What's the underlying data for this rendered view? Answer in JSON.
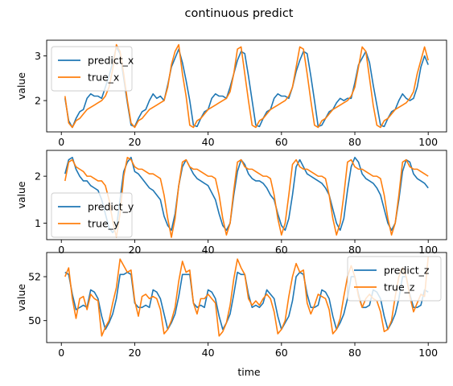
{
  "figure": {
    "title": "continuous predict"
  },
  "colors": {
    "predict": "#1f77b4",
    "true": "#ff7f0e"
  },
  "chart_data": [
    {
      "type": "line",
      "title": "",
      "xlabel": "",
      "ylabel": "value",
      "xlim": [
        -4,
        105
      ],
      "ylim": [
        1.3,
        3.35
      ],
      "xticks": [
        0,
        20,
        40,
        60,
        80,
        100
      ],
      "xtick_labels": [
        "0",
        "20",
        "40",
        "60",
        "80",
        "100"
      ],
      "yticks": [
        2,
        3
      ],
      "ytick_labels": [
        "2",
        "3"
      ],
      "legend": "top-left",
      "x": [
        1,
        2,
        3,
        4,
        5,
        6,
        7,
        8,
        9,
        10,
        11,
        12,
        13,
        14,
        15,
        16,
        17,
        18,
        19,
        20,
        21,
        22,
        23,
        24,
        25,
        26,
        27,
        28,
        29,
        30,
        31,
        32,
        33,
        34,
        35,
        36,
        37,
        38,
        39,
        40,
        41,
        42,
        43,
        44,
        45,
        46,
        47,
        48,
        49,
        50,
        51,
        52,
        53,
        54,
        55,
        56,
        57,
        58,
        59,
        60,
        61,
        62,
        63,
        64,
        65,
        66,
        67,
        68,
        69,
        70,
        71,
        72,
        73,
        74,
        75,
        76,
        77,
        78,
        79,
        80,
        81,
        82,
        83,
        84,
        85,
        86,
        87,
        88,
        89,
        90,
        91,
        92,
        93,
        94,
        95,
        96,
        97,
        98,
        99,
        100
      ],
      "series": [
        {
          "name": "predict_x",
          "color": "#1f77b4",
          "values": [
            2.05,
            1.55,
            1.4,
            1.6,
            1.75,
            1.8,
            2.05,
            2.15,
            2.1,
            2.1,
            2.05,
            2.3,
            2.55,
            2.85,
            3.2,
            3.05,
            2.5,
            1.95,
            1.45,
            1.42,
            1.6,
            1.75,
            1.8,
            2.0,
            2.15,
            2.05,
            2.1,
            2.0,
            2.35,
            2.75,
            2.95,
            3.15,
            2.85,
            2.45,
            2.0,
            1.45,
            1.42,
            1.6,
            1.75,
            1.8,
            2.05,
            2.15,
            2.1,
            2.1,
            2.05,
            2.3,
            2.6,
            2.9,
            3.1,
            3.05,
            2.55,
            2.0,
            1.45,
            1.42,
            1.6,
            1.75,
            1.8,
            2.05,
            2.15,
            2.1,
            2.1,
            2.05,
            2.3,
            2.65,
            2.9,
            3.1,
            3.05,
            2.55,
            2.0,
            1.42,
            1.45,
            1.6,
            1.75,
            1.8,
            1.95,
            2.05,
            2.0,
            2.05,
            2.05,
            2.4,
            2.8,
            2.95,
            3.1,
            2.85,
            2.35,
            1.9,
            1.45,
            1.42,
            1.6,
            1.75,
            1.8,
            2.0,
            2.15,
            2.05,
            2.0,
            2.05,
            2.3,
            2.75,
            3.0,
            2.8
          ]
        },
        {
          "name": "true_x",
          "color": "#ff7f0e",
          "values": [
            2.1,
            1.5,
            1.4,
            1.55,
            1.6,
            1.7,
            1.8,
            1.85,
            1.9,
            1.95,
            2.0,
            2.1,
            2.3,
            2.7,
            3.25,
            3.1,
            2.6,
            2.0,
            1.5,
            1.4,
            1.55,
            1.6,
            1.7,
            1.8,
            1.85,
            1.9,
            1.95,
            2.0,
            2.3,
            2.8,
            3.1,
            3.25,
            2.6,
            2.1,
            1.45,
            1.4,
            1.55,
            1.6,
            1.7,
            1.8,
            1.85,
            1.9,
            1.95,
            2.0,
            2.05,
            2.2,
            2.6,
            3.15,
            3.2,
            2.6,
            2.0,
            1.45,
            1.4,
            1.55,
            1.6,
            1.7,
            1.8,
            1.85,
            1.9,
            1.95,
            2.0,
            2.1,
            2.3,
            2.75,
            3.2,
            3.15,
            2.6,
            2.0,
            1.45,
            1.4,
            1.55,
            1.6,
            1.7,
            1.8,
            1.85,
            1.9,
            1.95,
            2.0,
            2.1,
            2.3,
            2.75,
            3.2,
            3.1,
            2.5,
            1.9,
            1.45,
            1.4,
            1.55,
            1.6,
            1.7,
            1.8,
            1.85,
            1.9,
            1.95,
            2.05,
            2.2,
            2.6,
            2.9,
            3.2,
            2.9
          ]
        }
      ]
    },
    {
      "type": "line",
      "title": "",
      "xlabel": "",
      "ylabel": "value",
      "xlim": [
        -4,
        105
      ],
      "ylim": [
        0.65,
        2.55
      ],
      "xticks": [
        0,
        20,
        40,
        60,
        80,
        100
      ],
      "xtick_labels": [
        "0",
        "20",
        "40",
        "60",
        "80",
        "100"
      ],
      "yticks": [
        1,
        2
      ],
      "ytick_labels": [
        "1",
        "2"
      ],
      "legend": "bottom-left",
      "x": [
        1,
        2,
        3,
        4,
        5,
        6,
        7,
        8,
        9,
        10,
        11,
        12,
        13,
        14,
        15,
        16,
        17,
        18,
        19,
        20,
        21,
        22,
        23,
        24,
        25,
        26,
        27,
        28,
        29,
        30,
        31,
        32,
        33,
        34,
        35,
        36,
        37,
        38,
        39,
        40,
        41,
        42,
        43,
        44,
        45,
        46,
        47,
        48,
        49,
        50,
        51,
        52,
        53,
        54,
        55,
        56,
        57,
        58,
        59,
        60,
        61,
        62,
        63,
        64,
        65,
        66,
        67,
        68,
        69,
        70,
        71,
        72,
        73,
        74,
        75,
        76,
        77,
        78,
        79,
        80,
        81,
        82,
        83,
        84,
        85,
        86,
        87,
        88,
        89,
        90,
        91,
        92,
        93,
        94,
        95,
        96,
        97,
        98,
        99,
        100
      ],
      "series": [
        {
          "name": "predict_y",
          "color": "#1f77b4",
          "values": [
            2.05,
            2.35,
            2.4,
            2.15,
            2.0,
            1.9,
            1.9,
            1.8,
            1.75,
            1.7,
            1.5,
            1.2,
            0.9,
            0.8,
            0.9,
            1.5,
            2.1,
            2.3,
            2.4,
            2.1,
            2.05,
            1.95,
            1.85,
            1.75,
            1.7,
            1.6,
            1.5,
            1.15,
            0.95,
            0.85,
            1.2,
            1.8,
            2.2,
            2.35,
            2.2,
            2.05,
            1.95,
            1.9,
            1.85,
            1.8,
            1.65,
            1.5,
            1.2,
            0.95,
            0.85,
            1.0,
            1.6,
            2.1,
            2.35,
            2.25,
            2.05,
            1.95,
            1.9,
            1.9,
            1.85,
            1.75,
            1.6,
            1.5,
            1.2,
            0.95,
            0.85,
            1.1,
            1.6,
            2.2,
            2.35,
            2.2,
            2.05,
            2.0,
            1.95,
            1.9,
            1.85,
            1.75,
            1.6,
            1.3,
            1.0,
            0.85,
            1.1,
            1.7,
            2.2,
            2.4,
            2.3,
            2.05,
            1.95,
            1.9,
            1.85,
            1.75,
            1.6,
            1.3,
            1.0,
            0.85,
            1.0,
            1.5,
            2.1,
            2.35,
            2.3,
            2.05,
            1.95,
            1.9,
            1.85,
            1.75
          ]
        },
        {
          "name": "true_y",
          "color": "#ff7f0e",
          "values": [
            1.9,
            2.3,
            2.35,
            2.2,
            2.15,
            2.1,
            2.0,
            2.0,
            1.95,
            1.9,
            1.9,
            1.8,
            1.5,
            1.05,
            0.7,
            1.2,
            2.0,
            2.4,
            2.35,
            2.2,
            2.15,
            2.15,
            2.1,
            2.05,
            2.05,
            2.0,
            1.95,
            1.6,
            1.1,
            0.7,
            1.1,
            1.8,
            2.3,
            2.35,
            2.2,
            2.15,
            2.15,
            2.1,
            2.05,
            2.0,
            2.0,
            1.95,
            1.6,
            1.1,
            0.75,
            1.0,
            1.7,
            2.3,
            2.35,
            2.2,
            2.15,
            2.15,
            2.1,
            2.05,
            2.0,
            2.0,
            1.95,
            1.6,
            1.1,
            0.75,
            1.0,
            1.6,
            2.25,
            2.35,
            2.2,
            2.15,
            2.15,
            2.1,
            2.05,
            2.0,
            2.0,
            1.95,
            1.6,
            1.1,
            0.75,
            1.0,
            1.6,
            2.3,
            2.35,
            2.2,
            2.15,
            2.15,
            2.1,
            2.05,
            2.0,
            2.0,
            1.95,
            1.6,
            1.1,
            0.75,
            1.0,
            1.6,
            2.3,
            2.35,
            2.2,
            2.15,
            2.15,
            2.1,
            2.05,
            2.0
          ]
        }
      ]
    },
    {
      "type": "line",
      "title": "",
      "xlabel": "time",
      "ylabel": "value",
      "xlim": [
        -4,
        105
      ],
      "ylim": [
        49.0,
        53.1
      ],
      "xticks": [
        0,
        20,
        40,
        60,
        80,
        100
      ],
      "xtick_labels": [
        "0",
        "20",
        "40",
        "60",
        "80",
        "100"
      ],
      "yticks": [
        50,
        52
      ],
      "ytick_labels": [
        "50",
        "52"
      ],
      "legend": "top-right",
      "x": [
        1,
        2,
        3,
        4,
        5,
        6,
        7,
        8,
        9,
        10,
        11,
        12,
        13,
        14,
        15,
        16,
        17,
        18,
        19,
        20,
        21,
        22,
        23,
        24,
        25,
        26,
        27,
        28,
        29,
        30,
        31,
        32,
        33,
        34,
        35,
        36,
        37,
        38,
        39,
        40,
        41,
        42,
        43,
        44,
        45,
        46,
        47,
        48,
        49,
        50,
        51,
        52,
        53,
        54,
        55,
        56,
        57,
        58,
        59,
        60,
        61,
        62,
        63,
        64,
        65,
        66,
        67,
        68,
        69,
        70,
        71,
        72,
        73,
        74,
        75,
        76,
        77,
        78,
        79,
        80,
        81,
        82,
        83,
        84,
        85,
        86,
        87,
        88,
        89,
        90,
        91,
        92,
        93,
        94,
        95,
        96,
        97,
        98,
        99,
        100
      ],
      "series": [
        {
          "name": "predict_z",
          "color": "#1f77b4",
          "values": [
            52.2,
            52.1,
            51.2,
            50.5,
            50.6,
            50.7,
            50.6,
            51.4,
            51.3,
            51.0,
            50.2,
            49.6,
            49.9,
            50.3,
            51.0,
            52.1,
            52.1,
            52.2,
            52.1,
            50.8,
            50.6,
            50.6,
            50.7,
            50.6,
            51.4,
            51.3,
            51.0,
            50.3,
            49.6,
            49.9,
            50.3,
            51.1,
            52.1,
            52.1,
            52.1,
            50.8,
            50.6,
            50.7,
            50.6,
            51.4,
            51.3,
            51.0,
            50.2,
            49.6,
            49.9,
            50.3,
            51.2,
            52.2,
            52.1,
            52.1,
            51.2,
            50.6,
            50.7,
            50.6,
            50.8,
            51.4,
            51.2,
            51.0,
            50.2,
            49.6,
            49.9,
            50.2,
            50.9,
            52.0,
            52.2,
            52.1,
            51.2,
            50.6,
            50.6,
            50.7,
            51.4,
            51.3,
            51.0,
            50.2,
            49.6,
            49.9,
            50.3,
            51.0,
            52.0,
            52.0,
            51.2,
            50.6,
            50.6,
            50.7,
            51.4,
            51.3,
            51.0,
            50.2,
            49.6,
            49.9,
            50.3,
            51.0,
            52.0,
            52.0,
            51.2,
            50.6,
            50.6,
            50.7,
            51.4,
            51.3
          ]
        },
        {
          "name": "true_z",
          "color": "#ff7f0e",
          "values": [
            52.0,
            52.4,
            51.0,
            50.1,
            51.0,
            51.1,
            50.5,
            51.2,
            51.0,
            50.9,
            49.3,
            49.7,
            50.0,
            50.8,
            51.5,
            52.8,
            52.5,
            52.2,
            52.3,
            50.9,
            50.2,
            51.1,
            51.2,
            51.0,
            51.1,
            51.0,
            50.5,
            49.4,
            49.6,
            50.0,
            50.6,
            51.8,
            52.7,
            52.2,
            52.3,
            50.8,
            50.3,
            51.0,
            51.0,
            51.2,
            51.0,
            50.8,
            49.3,
            49.5,
            49.9,
            50.7,
            51.9,
            52.8,
            52.4,
            52.1,
            51.0,
            50.7,
            50.9,
            50.7,
            51.0,
            51.2,
            51.0,
            50.4,
            49.4,
            49.6,
            50.0,
            51.1,
            52.0,
            52.6,
            52.2,
            52.3,
            50.8,
            50.3,
            50.7,
            51.2,
            51.1,
            51.0,
            50.5,
            49.4,
            49.6,
            50.1,
            51.1,
            52.0,
            52.5,
            52.0,
            51.1,
            50.6,
            51.0,
            51.2,
            51.0,
            50.9,
            50.4,
            49.5,
            49.6,
            50.0,
            51.1,
            52.0,
            52.4,
            52.0,
            51.1,
            50.4,
            50.8,
            51.2,
            51.1,
            52.9
          ]
        }
      ]
    }
  ]
}
